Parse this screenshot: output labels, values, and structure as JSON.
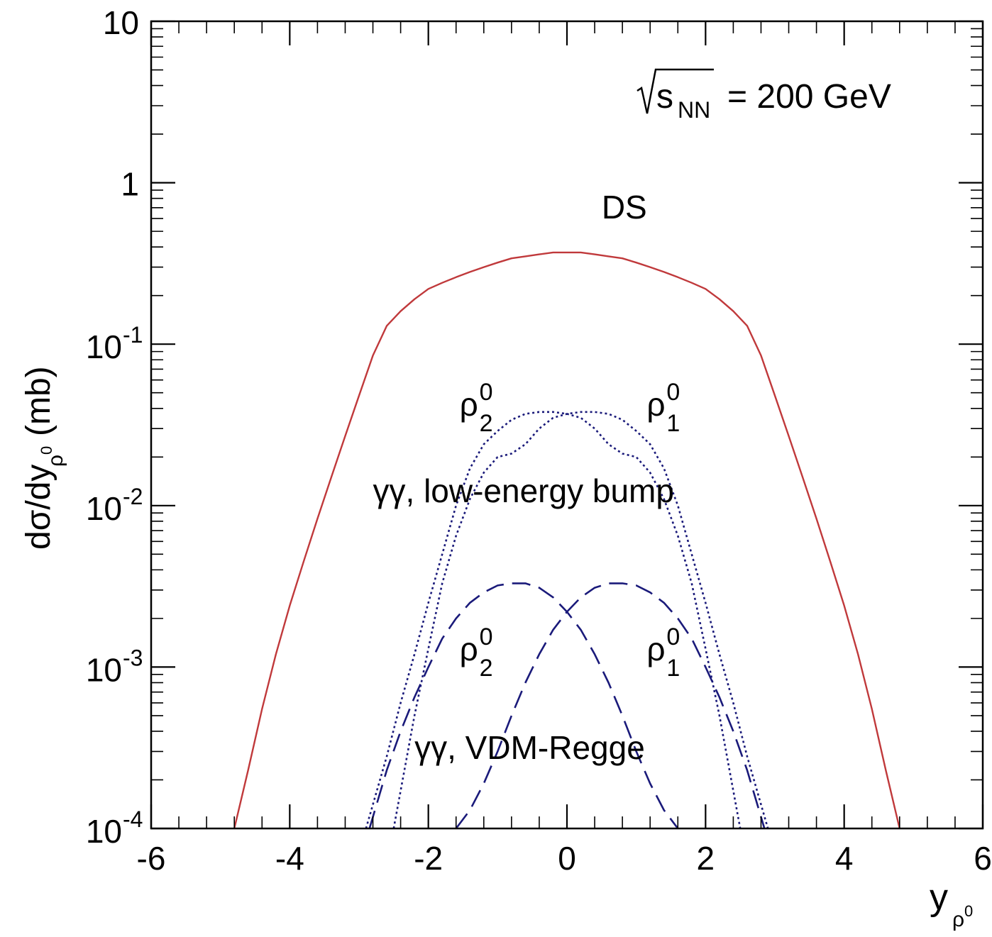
{
  "chart_data": {
    "type": "line",
    "xlabel": "y",
    "xlabel_sub": "ρ",
    "xlabel_subsup": "0",
    "ylabel": "dσ/dy",
    "ylabel_sub": "ρ",
    "ylabel_subsup": "0",
    "ylabel_unit": "(mb)",
    "xlim": [
      -6,
      6
    ],
    "ylim": [
      0.0001,
      10
    ],
    "yscale": "log",
    "x_ticks": [
      {
        "value": -6,
        "label": "-6"
      },
      {
        "value": -4,
        "label": "-4"
      },
      {
        "value": -2,
        "label": "-2"
      },
      {
        "value": 0,
        "label": "0"
      },
      {
        "value": 2,
        "label": "2"
      },
      {
        "value": 4,
        "label": "4"
      },
      {
        "value": 6,
        "label": "6"
      }
    ],
    "y_ticks": [
      {
        "value": 10,
        "base": "10",
        "exp": ""
      },
      {
        "value": 1,
        "base": "1",
        "exp": ""
      },
      {
        "value": 0.1,
        "base": "10",
        "exp": "-1"
      },
      {
        "value": 0.01,
        "base": "10",
        "exp": "-2"
      },
      {
        "value": 0.001,
        "base": "10",
        "exp": "-3"
      },
      {
        "value": 0.0001,
        "base": "10",
        "exp": "-4"
      }
    ],
    "energy_label": {
      "sqrt": "s",
      "sub": "NN",
      "rest": "= 200 GeV"
    },
    "series": [
      {
        "name": "DS",
        "color": "#c0393b",
        "style": "solid",
        "x": [
          -4.8,
          -4.6,
          -4.4,
          -4.2,
          -4.0,
          -3.8,
          -3.6,
          -3.4,
          -3.2,
          -3.0,
          -2.8,
          -2.6,
          -2.4,
          -2.2,
          -2.0,
          -1.8,
          -1.6,
          -1.4,
          -1.2,
          -1.0,
          -0.8,
          -0.6,
          -0.4,
          -0.2,
          0.0,
          0.2,
          0.4,
          0.6,
          0.8,
          1.0,
          1.2,
          1.4,
          1.6,
          1.8,
          2.0,
          2.2,
          2.4,
          2.6,
          2.8,
          3.0,
          3.2,
          3.4,
          3.6,
          3.8,
          4.0,
          4.2,
          4.4,
          4.6,
          4.8
        ],
        "y": [
          0.0001,
          0.00023,
          0.00055,
          0.0012,
          0.0024,
          0.0045,
          0.0083,
          0.015,
          0.027,
          0.048,
          0.085,
          0.13,
          0.16,
          0.19,
          0.22,
          0.24,
          0.26,
          0.28,
          0.3,
          0.32,
          0.34,
          0.35,
          0.36,
          0.37,
          0.37,
          0.37,
          0.36,
          0.35,
          0.34,
          0.32,
          0.3,
          0.28,
          0.26,
          0.24,
          0.22,
          0.19,
          0.16,
          0.13,
          0.085,
          0.048,
          0.027,
          0.015,
          0.0083,
          0.0045,
          0.0024,
          0.0012,
          0.00055,
          0.00023,
          0.0001
        ]
      },
      {
        "name": "ρ⁰₂ low-energy bump",
        "color": "#1a1a7a",
        "style": "dotted",
        "x": [
          -2.9,
          -2.6,
          -2.4,
          -2.2,
          -2.0,
          -1.8,
          -1.6,
          -1.4,
          -1.2,
          -1.0,
          -0.8,
          -0.6,
          -0.4,
          -0.2,
          0.0,
          0.2,
          0.4,
          0.6,
          0.8,
          1.0,
          1.2,
          1.4,
          1.6,
          1.8,
          2.0,
          2.2,
          2.5
        ],
        "y": [
          0.0001,
          0.00028,
          0.0006,
          0.0012,
          0.0025,
          0.005,
          0.01,
          0.017,
          0.024,
          0.029,
          0.034,
          0.037,
          0.038,
          0.038,
          0.037,
          0.035,
          0.03,
          0.024,
          0.021,
          0.02,
          0.016,
          0.011,
          0.0065,
          0.0033,
          0.0013,
          0.0005,
          0.0001
        ]
      },
      {
        "name": "ρ⁰₁ low-energy bump",
        "color": "#1a1a7a",
        "style": "dotted",
        "x": [
          -2.5,
          -2.2,
          -2.0,
          -1.8,
          -1.6,
          -1.4,
          -1.2,
          -1.0,
          -0.8,
          -0.6,
          -0.4,
          -0.2,
          0.0,
          0.2,
          0.4,
          0.6,
          0.8,
          1.0,
          1.2,
          1.4,
          1.6,
          1.8,
          2.0,
          2.2,
          2.4,
          2.6,
          2.9
        ],
        "y": [
          0.0001,
          0.0005,
          0.0013,
          0.0033,
          0.0065,
          0.011,
          0.016,
          0.02,
          0.021,
          0.024,
          0.03,
          0.035,
          0.037,
          0.038,
          0.038,
          0.037,
          0.034,
          0.029,
          0.024,
          0.017,
          0.01,
          0.005,
          0.0025,
          0.0012,
          0.0006,
          0.00028,
          0.0001
        ]
      },
      {
        "name": "ρ⁰₂ VDM-Regge",
        "color": "#1a1a7a",
        "style": "dashed",
        "x": [
          -2.85,
          -2.6,
          -2.4,
          -2.2,
          -2.0,
          -1.8,
          -1.6,
          -1.4,
          -1.2,
          -1.0,
          -0.8,
          -0.6,
          -0.4,
          -0.2,
          0.0,
          0.2,
          0.4,
          0.6,
          0.8,
          1.0,
          1.2,
          1.4,
          1.6
        ],
        "y": [
          0.0001,
          0.00023,
          0.0004,
          0.00065,
          0.001,
          0.0015,
          0.002,
          0.0025,
          0.0029,
          0.0032,
          0.0033,
          0.0033,
          0.0031,
          0.0027,
          0.0022,
          0.0017,
          0.0012,
          0.0008,
          0.0005,
          0.0003,
          0.00019,
          0.00013,
          0.0001
        ]
      },
      {
        "name": "ρ⁰₁ VDM-Regge",
        "color": "#1a1a7a",
        "style": "dashed",
        "x": [
          -1.6,
          -1.4,
          -1.2,
          -1.0,
          -0.8,
          -0.6,
          -0.4,
          -0.2,
          0.0,
          0.2,
          0.4,
          0.6,
          0.8,
          1.0,
          1.2,
          1.4,
          1.6,
          1.8,
          2.0,
          2.2,
          2.4,
          2.6,
          2.85
        ],
        "y": [
          0.0001,
          0.00013,
          0.00019,
          0.0003,
          0.0005,
          0.0008,
          0.0012,
          0.0017,
          0.0022,
          0.0027,
          0.0031,
          0.0033,
          0.0033,
          0.0032,
          0.0029,
          0.0025,
          0.002,
          0.0015,
          0.001,
          0.00065,
          0.0004,
          0.00023,
          0.0001
        ]
      }
    ],
    "annotations": [
      {
        "id": "ds",
        "text": "DS",
        "x": 0.5,
        "y": 0.6
      },
      {
        "id": "rho2-bump",
        "base": "ρ",
        "sup": "0",
        "sub": "2",
        "x": -1.55,
        "y": 0.036
      },
      {
        "id": "rho1-bump",
        "base": "ρ",
        "sup": "0",
        "sub": "1",
        "x": 1.15,
        "y": 0.036
      },
      {
        "id": "bump-label",
        "text": "γγ, low-energy bump",
        "x": -2.8,
        "y": 0.0105
      },
      {
        "id": "rho2-vdm",
        "base": "ρ",
        "sup": "0",
        "sub": "2",
        "x": -1.55,
        "y": 0.0011
      },
      {
        "id": "rho1-vdm",
        "base": "ρ",
        "sup": "0",
        "sub": "1",
        "x": 1.15,
        "y": 0.0011
      },
      {
        "id": "vdm-label",
        "text": "γγ, VDM-Regge",
        "x": -2.2,
        "y": 0.00027
      }
    ]
  }
}
